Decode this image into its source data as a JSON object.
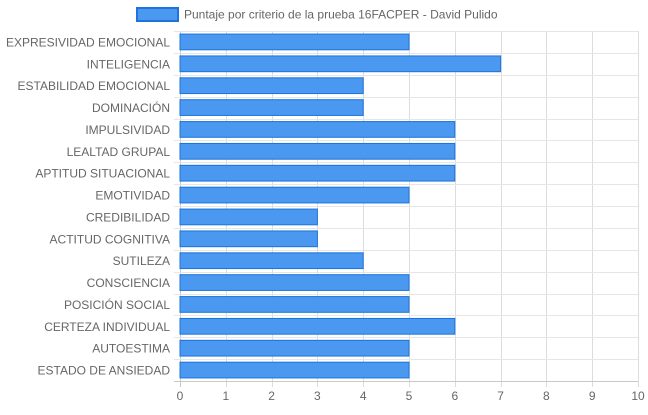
{
  "chart_data": {
    "type": "bar",
    "orientation": "horizontal",
    "categories": [
      "EXPRESIVIDAD EMOCIONAL",
      "INTELIGENCIA",
      "ESTABILIDAD EMOCIONAL",
      "DOMINACIÓN",
      "IMPULSIVIDAD",
      "LEALTAD GRUPAL",
      "APTITUD SITUACIONAL",
      "EMOTIVIDAD",
      "CREDIBILIDAD",
      "ACTITUD COGNITIVA",
      "SUTILEZA",
      "CONSCIENCIA",
      "POSICIÓN SOCIAL",
      "CERTEZA INDIVIDUAL",
      "AUTOESTIMA",
      "ESTADO DE ANSIEDAD"
    ],
    "series": [
      {
        "name": "Puntaje por criterio de la prueba 16FACPER - David Pulido",
        "values": [
          5,
          7,
          4,
          4,
          6,
          6,
          6,
          5,
          3,
          3,
          4,
          5,
          5,
          6,
          5,
          5
        ],
        "color": "#4a98ef",
        "border_color": "#1c74dc"
      }
    ],
    "xlim": [
      0,
      10
    ],
    "x_ticks": [
      "0",
      "1",
      "2",
      "3",
      "4",
      "5",
      "6",
      "7",
      "8",
      "9",
      "10"
    ],
    "grid": true,
    "legend": "top-center"
  }
}
